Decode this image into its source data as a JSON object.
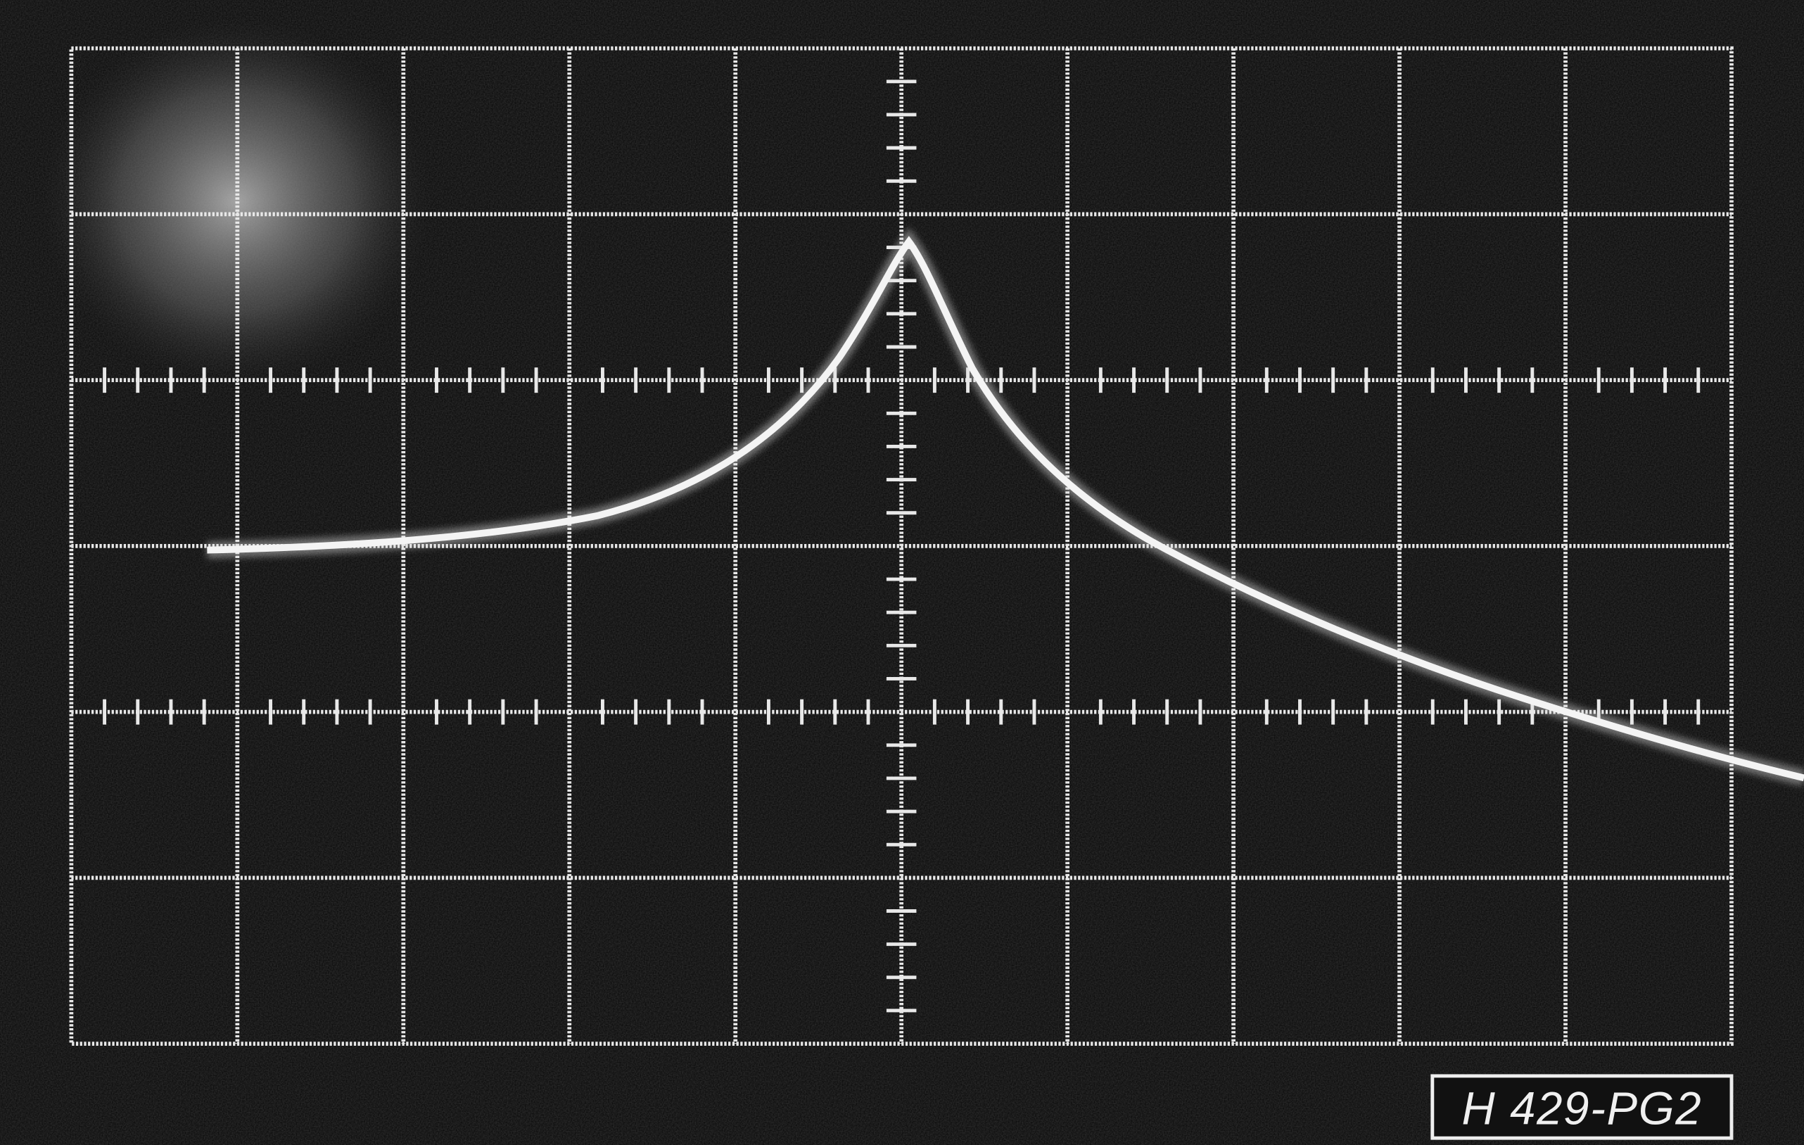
{
  "label": {
    "text": "H 429-PG2"
  }
}
